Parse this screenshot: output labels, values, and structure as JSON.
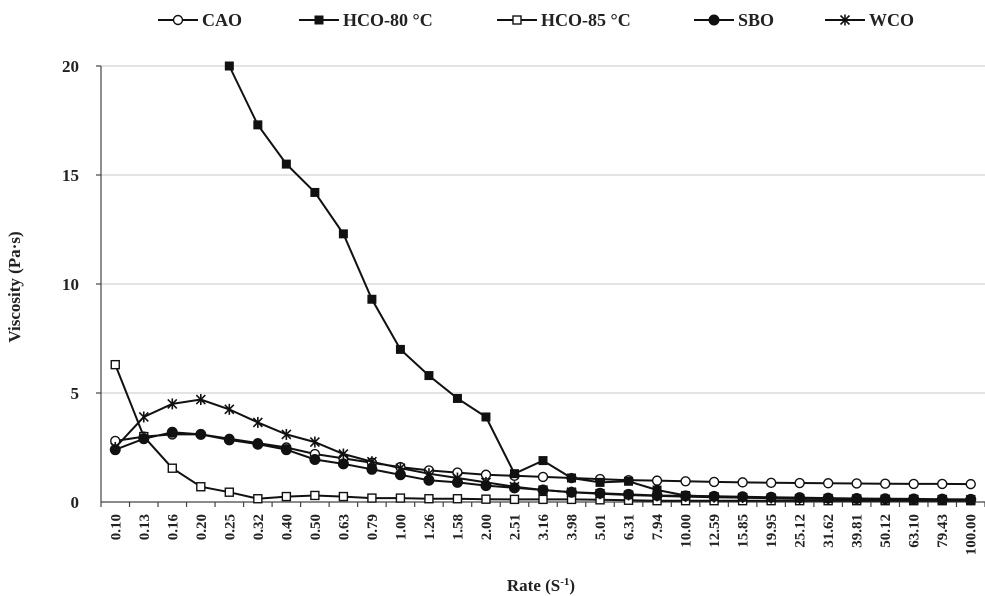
{
  "chart_data": {
    "type": "line",
    "title": "",
    "xlabel": "Rate (S",
    "xlabel_superscript": "-1",
    "xlabel_suffix": ")",
    "ylabel": "Viscosity (Pa·s)",
    "ylim": [
      0,
      20
    ],
    "y_ticks": [
      "0",
      "5",
      "10",
      "15",
      "20"
    ],
    "y_tick_values": [
      0,
      5,
      10,
      15,
      20
    ],
    "grid": "horizontal",
    "legend_position": "top",
    "categories": [
      "0.10",
      "0.13",
      "0.16",
      "0.20",
      "0.25",
      "0.32",
      "0.40",
      "0.50",
      "0.63",
      "0.79",
      "1.00",
      "1.26",
      "1.58",
      "2.00",
      "2.51",
      "3.16",
      "3.98",
      "5.01",
      "6.31",
      "7.94",
      "10.00",
      "12.59",
      "15.85",
      "19.95",
      "25.12",
      "31.62",
      "39.81",
      "50.12",
      "63.10",
      "79.43",
      "100.00"
    ],
    "series": [
      {
        "name": "CAO",
        "marker": "circle-open",
        "values": [
          2.8,
          3.0,
          3.1,
          3.1,
          2.9,
          2.7,
          2.5,
          2.2,
          2.0,
          1.8,
          1.6,
          1.45,
          1.35,
          1.25,
          1.2,
          1.15,
          1.1,
          1.05,
          1.0,
          0.98,
          0.95,
          0.92,
          0.9,
          0.88,
          0.87,
          0.86,
          0.85,
          0.84,
          0.83,
          0.83,
          0.82
        ]
      },
      {
        "name": "HCO-80 °C",
        "marker": "square-filled",
        "values": [
          null,
          null,
          null,
          null,
          20.0,
          17.3,
          15.5,
          14.2,
          12.3,
          9.3,
          7.0,
          5.8,
          4.75,
          3.9,
          1.3,
          1.9,
          1.1,
          0.9,
          0.95,
          0.55,
          0.3,
          0.25,
          0.2,
          0.18,
          0.15,
          0.14,
          0.13,
          0.12,
          0.12,
          0.11,
          0.1
        ]
      },
      {
        "name": "HCO-85 °C",
        "marker": "square-open",
        "values": [
          6.3,
          3.0,
          1.55,
          0.7,
          0.45,
          0.15,
          0.25,
          0.3,
          0.25,
          0.18,
          0.18,
          0.15,
          0.15,
          0.13,
          0.12,
          0.12,
          0.12,
          0.1,
          0.08,
          0.06,
          0.06,
          0.06,
          0.06,
          0.06,
          0.06,
          0.06,
          0.06,
          0.06,
          0.06,
          0.06,
          0.06
        ]
      },
      {
        "name": "SBO",
        "marker": "circle-filled",
        "values": [
          2.4,
          2.9,
          3.2,
          3.1,
          2.85,
          2.65,
          2.4,
          1.95,
          1.75,
          1.5,
          1.25,
          1.0,
          0.9,
          0.75,
          0.65,
          0.55,
          0.45,
          0.4,
          0.35,
          0.3,
          0.28,
          0.26,
          0.24,
          0.22,
          0.2,
          0.18,
          0.16,
          0.15,
          0.14,
          0.13,
          0.12
        ]
      },
      {
        "name": "WCO",
        "marker": "star",
        "values": [
          2.5,
          3.9,
          4.5,
          4.7,
          4.25,
          3.65,
          3.1,
          2.75,
          2.2,
          1.85,
          1.55,
          1.3,
          1.1,
          0.9,
          0.7,
          0.55,
          0.45,
          0.38,
          0.32,
          0.28,
          0.25,
          0.22,
          0.2,
          0.18,
          0.16,
          0.15,
          0.14,
          0.13,
          0.12,
          0.11,
          0.1
        ]
      }
    ]
  }
}
